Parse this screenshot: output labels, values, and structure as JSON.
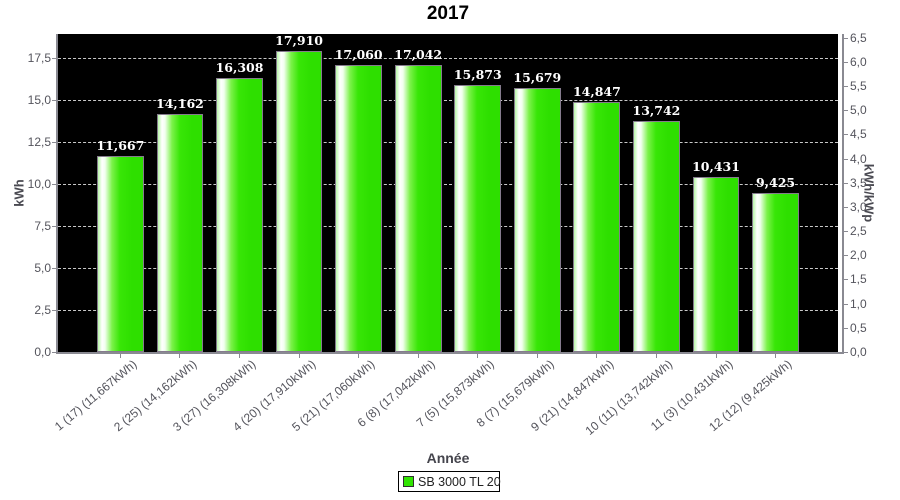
{
  "chart_data": {
    "type": "bar",
    "title": "2017",
    "xlabel": "Année",
    "ylabel_left": "kWh",
    "ylabel_right": "kWh/kWp",
    "legend": {
      "label": "SB 3000 TL 20",
      "swatch_color": "#31e401"
    },
    "categories": [
      "1 (17)  (11,667kWh)",
      "2 (25)  (14,162kWh)",
      "3 (27)  (16,308kWh)",
      "4 (20)  (17,910kWh)",
      "5 (21)  (17,060kWh)",
      "6 (8)  (17,042kWh)",
      "7 (5)  (15,873kWh)",
      "8 (7)  (15,679kWh)",
      "9 (21)  (14,847kWh)",
      "10 (11)  (13,742kWh)",
      "11 (3)  (10,431kWh)",
      "12 (12)  (9,425kWh)"
    ],
    "values": [
      11.667,
      14.162,
      16.308,
      17.91,
      17.06,
      17.042,
      15.873,
      15.679,
      14.847,
      13.742,
      10.431,
      9.425
    ],
    "bar_labels": [
      "11,667",
      "14,162",
      "16,308",
      "17,910",
      "17,060",
      "17,042",
      "15,873",
      "15,679",
      "14,847",
      "13,742",
      "10,431",
      "9,425"
    ],
    "unit": "kWh",
    "left_axis": {
      "ylim": [
        0,
        18.9
      ],
      "ticks": [
        {
          "v": 0,
          "label": "0,0"
        },
        {
          "v": 2.5,
          "label": "2,5"
        },
        {
          "v": 5,
          "label": "5,0"
        },
        {
          "v": 7.5,
          "label": "7,5"
        },
        {
          "v": 10,
          "label": "10,0"
        },
        {
          "v": 12.5,
          "label": "12,5"
        },
        {
          "v": 15,
          "label": "15,0"
        },
        {
          "v": 17.5,
          "label": "17,5"
        }
      ]
    },
    "right_axis": {
      "ylim": [
        0,
        6.577
      ],
      "ticks": [
        {
          "v": 0,
          "label": "0,0"
        },
        {
          "v": 0.5,
          "label": "0,5"
        },
        {
          "v": 1,
          "label": "1,0"
        },
        {
          "v": 1.5,
          "label": "1,5"
        },
        {
          "v": 2,
          "label": "2,0"
        },
        {
          "v": 2.5,
          "label": "2,5"
        },
        {
          "v": 3,
          "label": "3,0"
        },
        {
          "v": 3.5,
          "label": "3,5"
        },
        {
          "v": 4,
          "label": "4,0"
        },
        {
          "v": 4.5,
          "label": "4,5"
        },
        {
          "v": 5,
          "label": "5,0"
        },
        {
          "v": 5.5,
          "label": "5,5"
        },
        {
          "v": 6,
          "label": "6,0"
        },
        {
          "v": 6.5,
          "label": "6,5"
        }
      ]
    },
    "style": {
      "plot_bg": "#000000",
      "bar_color": "#31e401",
      "grid_color": "#c9c9c9",
      "grid_style": "dashed",
      "bar_label_color": "#ffffff",
      "legend_position": "bottom-center"
    }
  }
}
